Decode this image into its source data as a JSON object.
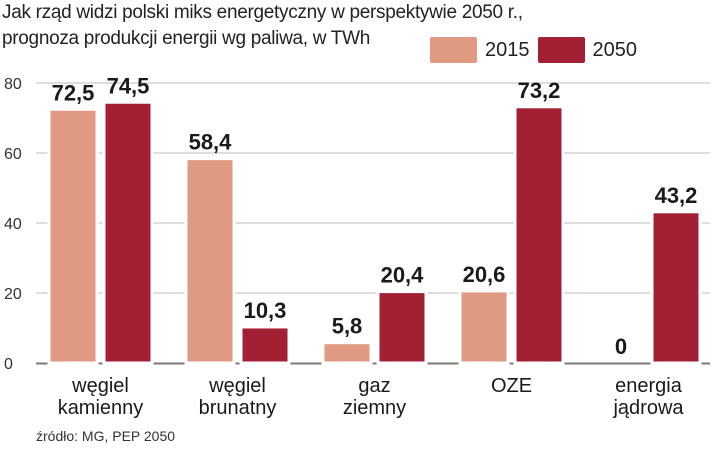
{
  "title_line1": "Jak rząd widzi polski miks energetyczny w perspektywie 2050 r.,",
  "title_line2": "prognoza produkcji energii wg paliwa, w TWh",
  "source": "źródło: MG, PEP 2050",
  "colors": {
    "s2015": "#e19a82",
    "s2050": "#a21f34",
    "grid": "#bcbcbc",
    "axis": "#7a7a7a"
  },
  "chart_data": {
    "type": "bar",
    "categories": [
      [
        "węgiel",
        "kamienny"
      ],
      [
        "węgiel",
        "brunatny"
      ],
      [
        "gaz",
        "ziemny"
      ],
      [
        "OZE"
      ],
      [
        "energia",
        "jądrowa"
      ]
    ],
    "series": [
      {
        "name": "2015",
        "values": [
          72.5,
          58.4,
          5.8,
          20.6,
          0
        ],
        "labels": [
          "72,5",
          "58,4",
          "5,8",
          "20,6",
          "0"
        ]
      },
      {
        "name": "2050",
        "values": [
          74.5,
          10.3,
          20.4,
          73.2,
          43.2
        ],
        "labels": [
          "74,5",
          "10,3",
          "20,4",
          "73,2",
          "43,2"
        ]
      }
    ],
    "ylim": [
      0,
      80
    ],
    "yticks": [
      0,
      20,
      40,
      60,
      80
    ],
    "grid": true,
    "legend": "top-right"
  }
}
